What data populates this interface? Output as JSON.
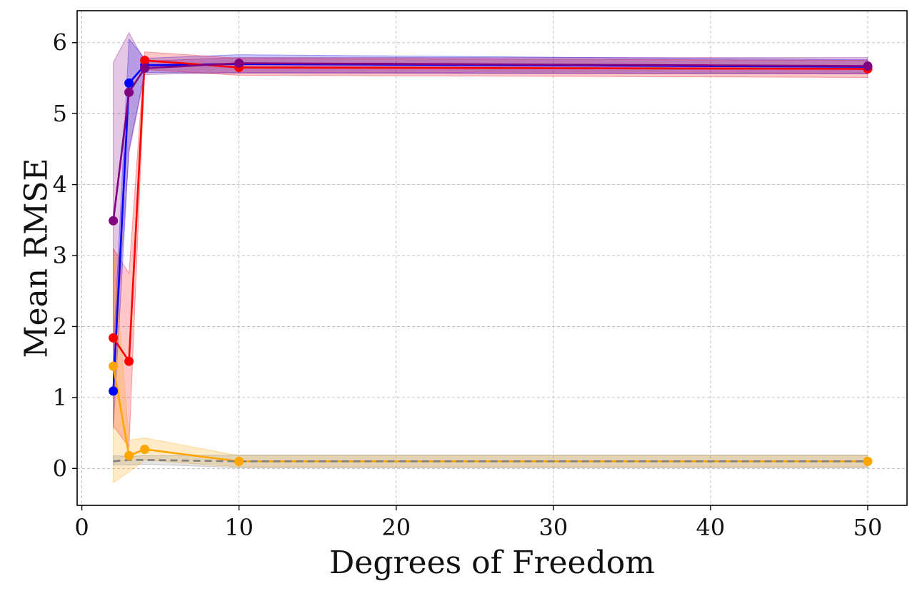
{
  "chart_data": {
    "type": "line",
    "title": "",
    "xlabel": "Degrees of Freedom",
    "ylabel": "Mean RMSE",
    "xlim": [
      -0.3,
      52.5
    ],
    "ylim": [
      -0.52,
      6.45
    ],
    "x_ticks": [
      0,
      10,
      20,
      30,
      40,
      50
    ],
    "y_ticks": [
      0,
      1,
      2,
      3,
      4,
      5,
      6
    ],
    "grid": true,
    "legend": "none",
    "x": [
      2,
      3,
      4,
      10,
      50
    ],
    "series": [
      {
        "color": "#0000ff",
        "values": [
          1.09,
          5.43,
          5.68,
          5.7,
          5.66
        ],
        "lower": [
          0.55,
          4.5,
          5.58,
          5.57,
          5.56
        ],
        "upper": [
          1.6,
          6.05,
          5.78,
          5.83,
          5.76
        ],
        "line_style": "solid",
        "markers": true
      },
      {
        "color": "#ff0000",
        "values": [
          1.84,
          1.51,
          5.75,
          5.65,
          5.63
        ],
        "lower": [
          0.6,
          0.3,
          5.62,
          5.54,
          5.51
        ],
        "upper": [
          3.1,
          2.75,
          5.87,
          5.78,
          5.75
        ],
        "line_style": "solid",
        "markers": true
      },
      {
        "color": "#800080",
        "values": [
          3.49,
          5.3,
          5.64,
          5.71,
          5.67
        ],
        "lower": [
          1.3,
          4.45,
          5.55,
          5.58,
          5.56
        ],
        "upper": [
          5.72,
          6.14,
          5.74,
          5.79,
          5.79
        ],
        "line_style": "solid",
        "markers": true
      },
      {
        "color": "#ffa500",
        "values": [
          1.44,
          0.18,
          0.27,
          0.1,
          0.1
        ],
        "lower": [
          -0.2,
          -0.05,
          0.12,
          0.02,
          0.02
        ],
        "upper": [
          3.1,
          0.4,
          0.43,
          0.18,
          0.18
        ],
        "line_style": "solid",
        "markers": true
      },
      {
        "color": "#808080",
        "values": [
          0.1,
          0.12,
          0.12,
          0.1,
          0.1
        ],
        "lower": [
          0.05,
          0.05,
          0.06,
          0.01,
          0.01
        ],
        "upper": [
          0.18,
          0.17,
          0.18,
          0.19,
          0.19
        ],
        "line_style": "dashed",
        "markers": false
      }
    ]
  }
}
